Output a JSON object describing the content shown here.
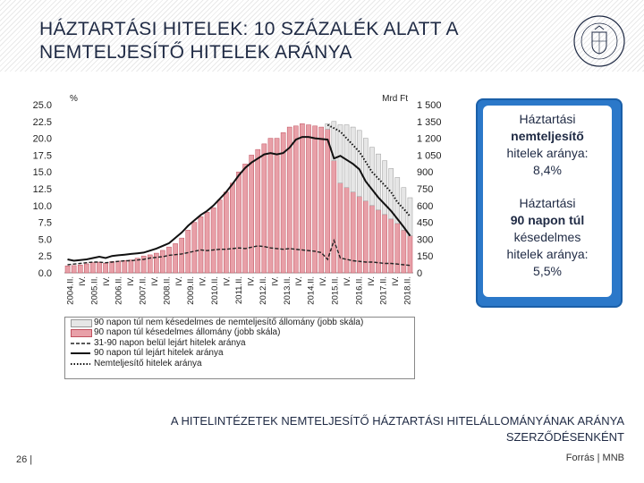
{
  "title": "HÁZTARTÁSI HITELEK: 10 SZÁZALÉK ALATT A\nNEMTELJESÍTŐ HITELEK ARÁNYA",
  "callout": {
    "block1": [
      "Háztartási",
      "nemteljesítő",
      "hitelek aránya:",
      "8,4%"
    ],
    "block2": [
      "Háztartási",
      "90 napon túl",
      "késedelmes",
      "hitelek aránya:",
      "5,5%"
    ]
  },
  "subtitle": "A HITELINTÉZETEK NEMTELJESÍTŐ HÁZTARTÁSI HITELÁLLOMÁNYÁNAK ARÁNYA SZERZŐDÉSENKÉNT",
  "footer": {
    "page": "26 |",
    "source": "Forrás | MNB"
  },
  "colors": {
    "bar_red": "#e8a0a8",
    "bar_red_stroke": "#c0505e",
    "bar_grey": "#e6e6e6",
    "accent": "#2b78c9"
  },
  "chart_data": {
    "type": "bar",
    "left_axis_label": "%",
    "right_axis_label": "Mrd Ft",
    "left_ticks": [
      "0.0",
      "2.5",
      "5.0",
      "7.5",
      "10.0",
      "12.5",
      "15.0",
      "17.5",
      "20.0",
      "22.5",
      "25.0"
    ],
    "right_ticks": [
      "0",
      "150",
      "300",
      "450",
      "600",
      "750",
      "900",
      "1 050",
      "1 200",
      "1 350",
      "1 500"
    ],
    "ylim_left": [
      0,
      25
    ],
    "ylim_right": [
      0,
      1500
    ],
    "x_tick_labels": [
      "2004.II.",
      "IV.",
      "2005.II.",
      "IV.",
      "2006.II.",
      "IV.",
      "2007.II.",
      "IV.",
      "2008.II.",
      "IV.",
      "2009.II.",
      "IV.",
      "2010.II.",
      "IV.",
      "2011.II.",
      "IV.",
      "2012.II.",
      "IV.",
      "2013.II.",
      "IV.",
      "2014.II.",
      "IV.",
      "2015.II.",
      "IV.",
      "2016.II.",
      "IV.",
      "2017.II.",
      "IV.",
      "2018.II."
    ],
    "legend": [
      "90 napon túl nem késedelmes de nemteljesítő állomány (jobb skála)",
      "90 napon túl késedelmes állomány (jobb skála)",
      "31-90 napon belül lejárt hitelek aránya",
      "90 napon túl lejárt hitelek aránya",
      "Nemteljesítő hitelek aránya"
    ],
    "series": [
      {
        "name": "90 napon túl késedelmes állomány (jobb skála)",
        "axis": "right",
        "values": [
          62,
          65,
          70,
          80,
          90,
          95,
          85,
          100,
          105,
          110,
          115,
          130,
          150,
          160,
          175,
          200,
          230,
          260,
          310,
          380,
          450,
          500,
          540,
          580,
          650,
          720,
          800,
          900,
          970,
          1050,
          1100,
          1150,
          1200,
          1200,
          1250,
          1300,
          1310,
          1330,
          1320,
          1310,
          1300,
          1280,
          1000,
          800,
          760,
          720,
          680,
          640,
          600,
          560,
          520,
          480,
          440,
          380,
          330
        ]
      },
      {
        "name": "90 napon túl nem késedelmes de nemteljesítő állomány (jobb skála)",
        "axis": "right",
        "values": [
          0,
          0,
          0,
          0,
          0,
          0,
          0,
          0,
          0,
          0,
          0,
          0,
          0,
          0,
          0,
          0,
          0,
          0,
          0,
          0,
          0,
          0,
          0,
          0,
          0,
          0,
          0,
          0,
          0,
          0,
          0,
          0,
          0,
          0,
          0,
          0,
          0,
          0,
          0,
          0,
          0,
          50,
          350,
          520,
          560,
          580,
          590,
          560,
          520,
          500,
          480,
          450,
          410,
          380,
          340
        ]
      },
      {
        "name": "31-90 napon belül lejárt hitelek aránya",
        "axis": "left",
        "values": [
          1.2,
          1.3,
          1.4,
          1.5,
          1.6,
          1.6,
          1.5,
          1.6,
          1.7,
          1.8,
          1.8,
          1.9,
          2.0,
          2.2,
          2.3,
          2.4,
          2.6,
          2.7,
          2.8,
          3.0,
          3.2,
          3.4,
          3.3,
          3.4,
          3.5,
          3.5,
          3.6,
          3.7,
          3.6,
          3.8,
          4.0,
          3.9,
          3.7,
          3.6,
          3.5,
          3.6,
          3.5,
          3.4,
          3.3,
          3.2,
          3.0,
          2.0,
          4.8,
          2.2,
          2.0,
          1.8,
          1.7,
          1.6,
          1.6,
          1.5,
          1.4,
          1.4,
          1.3,
          1.2,
          1.1
        ]
      },
      {
        "name": "90 napon túl lejárt hitelek aránya",
        "axis": "left",
        "values": [
          2.0,
          1.8,
          1.9,
          2.0,
          2.2,
          2.4,
          2.2,
          2.5,
          2.6,
          2.7,
          2.8,
          2.9,
          3.0,
          3.3,
          3.6,
          4.0,
          4.4,
          5.2,
          6.0,
          7.0,
          7.8,
          8.6,
          9.2,
          10.0,
          11.0,
          12.0,
          13.2,
          14.5,
          15.6,
          16.4,
          17.0,
          17.6,
          17.8,
          17.6,
          17.8,
          18.6,
          19.8,
          20.2,
          20.2,
          20.0,
          19.9,
          19.8,
          17.0,
          17.4,
          16.8,
          16.2,
          15.4,
          13.6,
          12.4,
          11.2,
          10.2,
          9.2,
          8.0,
          6.8,
          5.5
        ]
      },
      {
        "name": "Nemteljesítő hitelek aránya",
        "axis": "left",
        "values": [
          null,
          null,
          null,
          null,
          null,
          null,
          null,
          null,
          null,
          null,
          null,
          null,
          null,
          null,
          null,
          null,
          null,
          null,
          null,
          null,
          null,
          null,
          null,
          null,
          null,
          null,
          null,
          null,
          null,
          null,
          null,
          null,
          null,
          null,
          null,
          null,
          null,
          null,
          null,
          null,
          null,
          22.0,
          21.5,
          21.0,
          20.0,
          19.0,
          18.0,
          16.5,
          15.0,
          14.0,
          13.0,
          12.0,
          10.5,
          9.5,
          8.4
        ]
      }
    ]
  }
}
